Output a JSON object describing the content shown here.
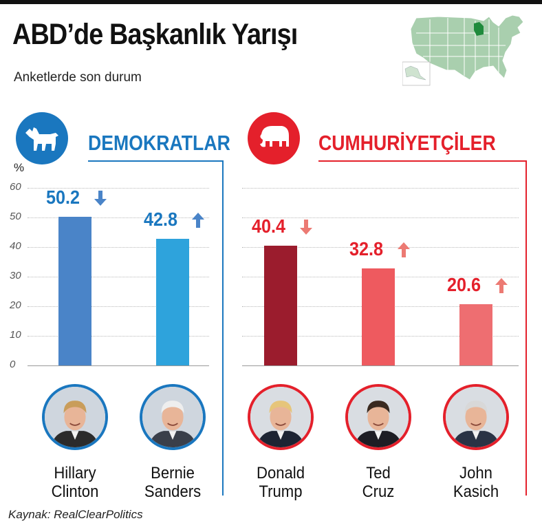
{
  "header": {
    "title": "ABD’de Başkanlık Yarışı",
    "subtitle": "Anketlerde son durum"
  },
  "parties": {
    "dem": {
      "label": "DEMOKRATLAR",
      "color": "#1a77bf"
    },
    "rep": {
      "label": "CUMHURİYETÇİLER",
      "color": "#e4202b"
    }
  },
  "chart_data": {
    "type": "bar",
    "ylabel": "%",
    "ylim": [
      0,
      60
    ],
    "yticks": [
      "0",
      "10",
      "20",
      "30",
      "40",
      "50",
      "60"
    ],
    "grid": true,
    "series": [
      {
        "group": "dem",
        "first": "Hillary",
        "last": "Clinton",
        "value": 50.2,
        "label": "50.2",
        "trend": "down",
        "color": "#4a84c8",
        "arrow_color": "#4a84c8"
      },
      {
        "group": "dem",
        "first": "Bernie",
        "last": "Sanders",
        "value": 42.8,
        "label": "42.8",
        "trend": "up",
        "color": "#2ea3dc",
        "arrow_color": "#4a84c8"
      },
      {
        "group": "rep",
        "first": "Donald",
        "last": "Trump",
        "value": 40.4,
        "label": "40.4",
        "trend": "down",
        "color": "#9b1c2d",
        "arrow_color": "#ec7a73"
      },
      {
        "group": "rep",
        "first": "Ted",
        "last": "Cruz",
        "value": 32.8,
        "label": "32.8",
        "trend": "up",
        "color": "#ee5a5f",
        "arrow_color": "#ec7a73"
      },
      {
        "group": "rep",
        "first": "John",
        "last": "Kasich",
        "value": 20.6,
        "label": "20.6",
        "trend": "up",
        "color": "#ee6e71",
        "arrow_color": "#ec7a73"
      }
    ]
  },
  "map": {
    "highlight_color": "#1f8a3c",
    "base_color": "#a9cfae"
  },
  "footer": {
    "source": "Kaynak: RealClearPolitics"
  }
}
